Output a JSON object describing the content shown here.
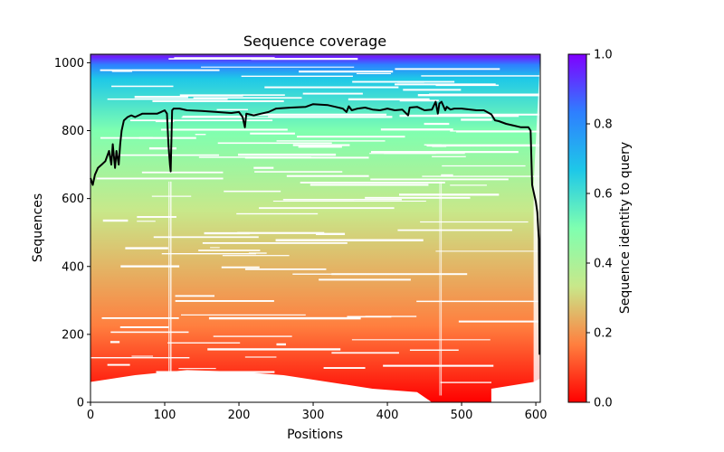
{
  "chart_data": {
    "type": "heatmap",
    "title": "Sequence coverage",
    "xlabel": "Positions",
    "ylabel": "Sequences",
    "xlim": [
      0,
      606
    ],
    "ylim": [
      0,
      1025
    ],
    "xticks": [
      "0",
      "100",
      "200",
      "300",
      "400",
      "500",
      "600"
    ],
    "yticks": [
      "0",
      "200",
      "400",
      "600",
      "800",
      "1000"
    ],
    "colorbar": {
      "label": "Sequence identity to query",
      "range": [
        0,
        1
      ],
      "ticks": [
        "0.0",
        "0.2",
        "0.4",
        "0.6",
        "0.8",
        "1.0"
      ],
      "colors": [
        "#ff0000",
        "#ff7f3f",
        "#c8e88a",
        "#7fffb0",
        "#1ec8e8",
        "#2e7fff",
        "#8000ff"
      ]
    },
    "series": [
      {
        "name": "coverage",
        "color": "#000000",
        "x": [
          0,
          3,
          6,
          10,
          15,
          20,
          25,
          28,
          30,
          33,
          35,
          38,
          40,
          42,
          45,
          50,
          55,
          60,
          70,
          80,
          90,
          95,
          100,
          103,
          105,
          107,
          108,
          110,
          112,
          115,
          120,
          130,
          150,
          170,
          190,
          200,
          205,
          208,
          210,
          220,
          230,
          240,
          250,
          270,
          290,
          300,
          320,
          330,
          340,
          345,
          348,
          352,
          360,
          370,
          380,
          390,
          400,
          410,
          420,
          428,
          430,
          440,
          450,
          460,
          465,
          468,
          470,
          473,
          478,
          480,
          485,
          490,
          500,
          520,
          530,
          540,
          545,
          550,
          560,
          570,
          580,
          590,
          593,
          595,
          597,
          600,
          602,
          604,
          605
        ],
        "y": [
          660,
          640,
          670,
          690,
          700,
          710,
          740,
          700,
          760,
          690,
          740,
          700,
          760,
          800,
          830,
          840,
          845,
          840,
          850,
          850,
          850,
          855,
          860,
          850,
          760,
          700,
          680,
          860,
          865,
          865,
          865,
          860,
          858,
          855,
          852,
          855,
          840,
          810,
          850,
          845,
          850,
          855,
          865,
          868,
          870,
          878,
          875,
          870,
          865,
          855,
          872,
          860,
          865,
          868,
          862,
          860,
          865,
          860,
          862,
          845,
          868,
          870,
          860,
          862,
          885,
          850,
          880,
          885,
          860,
          870,
          862,
          865,
          865,
          860,
          860,
          848,
          830,
          828,
          820,
          815,
          810,
          810,
          800,
          640,
          620,
          590,
          560,
          480,
          140
        ]
      }
    ]
  }
}
